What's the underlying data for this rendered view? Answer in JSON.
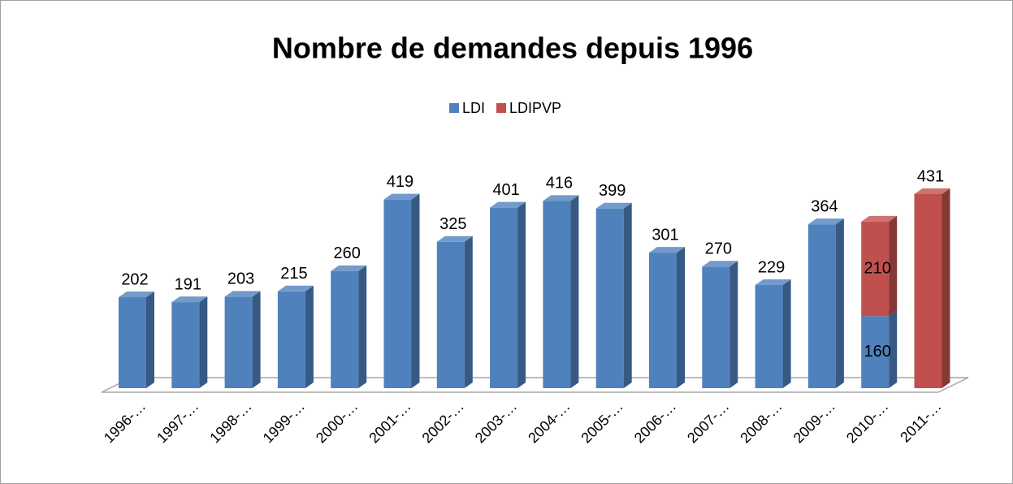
{
  "chart_data": {
    "type": "bar3d_stacked",
    "title": "Nombre de demandes depuis 1996",
    "categories": [
      "1996-…",
      "1997-…",
      "1998-…",
      "1999-…",
      "2000-…",
      "2001-…",
      "2002-…",
      "2003-…",
      "2004-…",
      "2005-…",
      "2006-…",
      "2007-…",
      "2008-…",
      "2009-…",
      "2010-…",
      "2011-…"
    ],
    "series": [
      {
        "name": "LDI",
        "color": "#4f81bd",
        "values": [
          202,
          191,
          203,
          215,
          260,
          419,
          325,
          401,
          416,
          399,
          301,
          270,
          229,
          364,
          160,
          null
        ]
      },
      {
        "name": "LDIPVP",
        "color": "#c0504d",
        "values": [
          null,
          null,
          null,
          null,
          null,
          null,
          null,
          null,
          null,
          null,
          null,
          null,
          null,
          null,
          210,
          431
        ]
      }
    ],
    "legend": "top"
  }
}
